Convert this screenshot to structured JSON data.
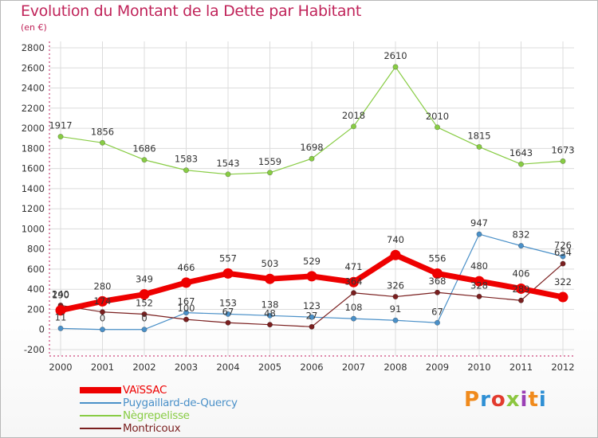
{
  "title": "Evolution du Montant de la Dette par Habitant",
  "unit": "(en €)",
  "logo_text": "Proxiti",
  "logo_colors": [
    "#f08a1c",
    "#2e8fd4",
    "#e23b2e",
    "#8cc63f",
    "#9b3fb5",
    "#f08a1c",
    "#2e8fd4"
  ],
  "chart_data": {
    "type": "line",
    "x": [
      "2000",
      "2001",
      "2002",
      "2003",
      "2004",
      "2005",
      "2006",
      "2007",
      "2008",
      "2009",
      "2010",
      "2011",
      "2012"
    ],
    "ylim": [
      -200,
      2800
    ],
    "yticks": [
      -200,
      0,
      200,
      400,
      600,
      800,
      1000,
      1200,
      1400,
      1600,
      1800,
      2000,
      2200,
      2400,
      2600,
      2800
    ],
    "grid": true,
    "legend_position": "bottom-left",
    "series": [
      {
        "name": "VAïSSAC",
        "color": "#ee0000",
        "values": [
          190,
          280,
          349,
          466,
          557,
          503,
          529,
          471,
          740,
          556,
          480,
          406,
          322
        ]
      },
      {
        "name": "Puygaillard-de-Quercy",
        "color": "#4a90c8",
        "values": [
          11,
          0,
          0,
          167,
          153,
          138,
          123,
          108,
          91,
          67,
          947,
          832,
          726
        ]
      },
      {
        "name": "Nègrepelisse",
        "color": "#88cc44",
        "values": [
          1917,
          1856,
          1686,
          1583,
          1543,
          1559,
          1698,
          2018,
          2610,
          2010,
          1815,
          1643,
          1673
        ]
      },
      {
        "name": "Montricoux",
        "color": "#7a1f1f",
        "values": [
          240,
          174,
          152,
          100,
          67,
          48,
          27,
          364,
          326,
          368,
          328,
          289,
          654
        ]
      }
    ],
    "data_labels": [
      [
        "190",
        "280",
        "349",
        "466",
        "557",
        "503",
        "529",
        "471",
        "740",
        "556",
        "480",
        "406",
        "322"
      ],
      [
        "11",
        "0",
        "0",
        "167",
        "153",
        "138",
        "123",
        "108",
        "91",
        "67",
        "947",
        "832",
        "726"
      ],
      [
        "1917",
        "1856",
        "1686",
        "1583",
        "1543",
        "1559",
        "1698",
        "2018",
        "2610",
        "2010",
        "1815",
        "1643",
        "1673"
      ],
      [
        "240",
        "174",
        "152",
        "100",
        "67",
        "48",
        "27",
        "364",
        "326",
        "368",
        "328",
        "289",
        "654"
      ]
    ]
  }
}
